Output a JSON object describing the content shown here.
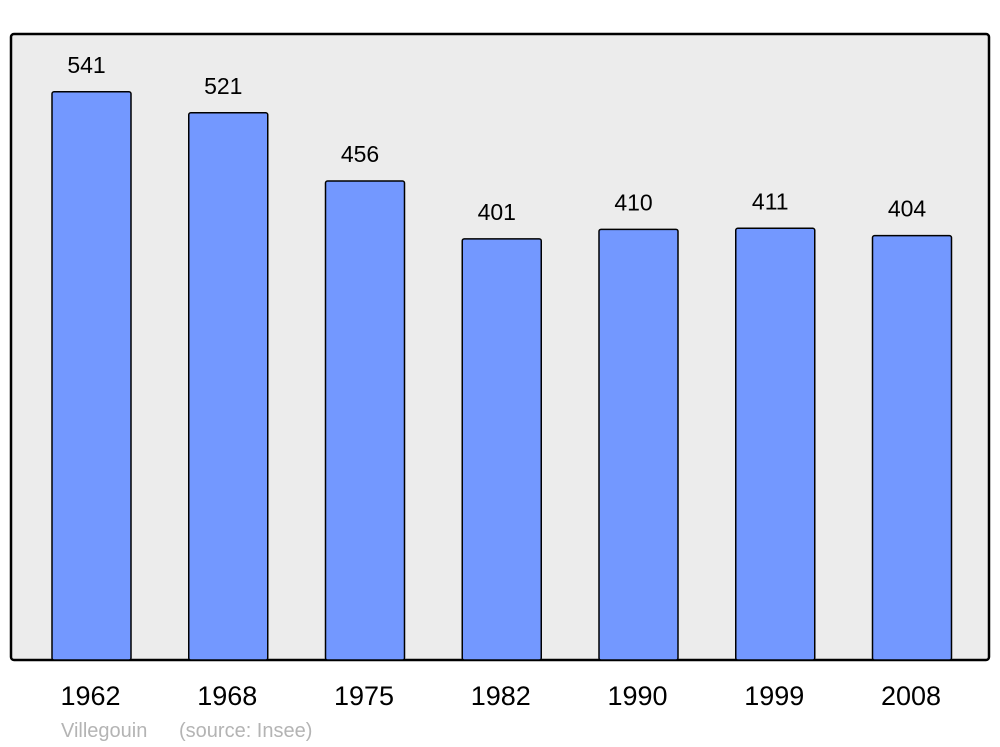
{
  "chart_data": {
    "type": "bar",
    "categories": [
      "1962",
      "1968",
      "1975",
      "1982",
      "1990",
      "1999",
      "2008"
    ],
    "values": [
      541,
      521,
      456,
      401,
      410,
      411,
      404
    ],
    "title": "",
    "xlabel": "",
    "ylabel": "",
    "ylim": [
      0,
      596
    ],
    "grid": false,
    "colors": {
      "bar": "#7398ff",
      "background": "#ececec",
      "frame": "#000000",
      "footer": "#b4b4b4"
    }
  },
  "footer": {
    "place": "Villegouin",
    "source": "(source: Insee)"
  }
}
